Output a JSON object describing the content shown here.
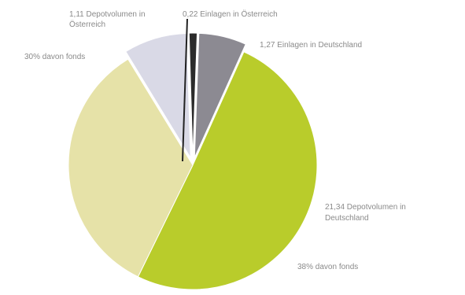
{
  "chart_data": {
    "type": "pie",
    "title": "",
    "slices": [
      {
        "label_lines": [
          "1,27 Einlagen in Deutschland"
        ],
        "value": 6,
        "color": "#8c8a92"
      },
      {
        "label_lines": [
          "21,34 Depotvolumen in",
          "Deutschland"
        ],
        "value": 49,
        "color": "#b9cc2b"
      },
      {
        "label_lines": [
          "30% davon fonds"
        ],
        "value": 33,
        "color": "#e6e2a8"
      },
      {
        "label_lines": [
          "1,11 Depotvolumen in",
          "Österreich"
        ],
        "value": 8,
        "color": "#d9d9e6"
      },
      {
        "label_lines": [
          "0,22 Einlagen in Österreich"
        ],
        "value": 1,
        "color": "#2b2b2b"
      }
    ],
    "annotations": [
      {
        "text": "30% davon fonds"
      },
      {
        "text": "38% davon fonds"
      }
    ],
    "legend": "none"
  }
}
